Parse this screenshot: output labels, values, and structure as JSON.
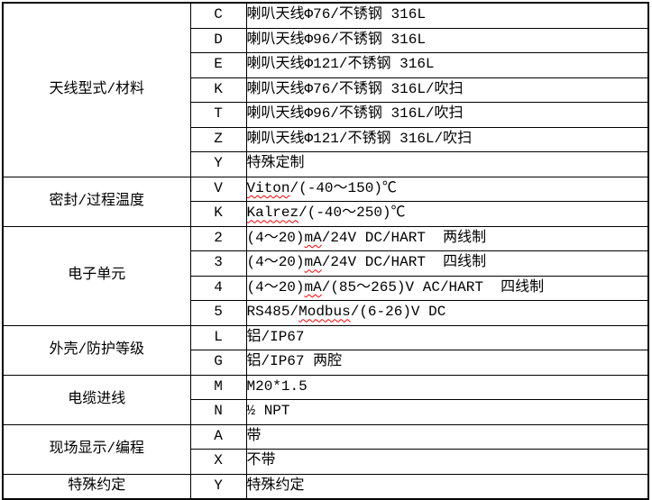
{
  "colors": {
    "background": "#ffffff",
    "text": "#000000",
    "border": "#000000",
    "spellcheck_underline": "#ff0000"
  },
  "spec_table": {
    "sections": [
      {
        "category": "天线型式/材料",
        "rows": [
          {
            "code": "C",
            "desc": "喇叭天线Φ76/不锈钢 316L",
            "misspelled": []
          },
          {
            "code": "D",
            "desc": "喇叭天线Φ96/不锈钢 316L",
            "misspelled": []
          },
          {
            "code": "E",
            "desc": "喇叭天线Φ121/不锈钢 316L",
            "misspelled": []
          },
          {
            "code": "K",
            "desc": "喇叭天线Φ76/不锈钢 316L/吹扫",
            "misspelled": []
          },
          {
            "code": "T",
            "desc": "喇叭天线Φ96/不锈钢 316L/吹扫",
            "misspelled": []
          },
          {
            "code": "Z",
            "desc": "喇叭天线Φ121/不锈钢 316L/吹扫",
            "misspelled": []
          },
          {
            "code": "Y",
            "desc": "特殊定制",
            "misspelled": []
          }
        ]
      },
      {
        "category": "密封/过程温度",
        "rows": [
          {
            "code": "V",
            "desc": "Viton/(-40～150)℃",
            "misspelled": [
              "Viton"
            ]
          },
          {
            "code": "K",
            "desc": "Kalrez/(-40～250)℃",
            "misspelled": [
              "Kalrez"
            ]
          }
        ]
      },
      {
        "category": "电子单元",
        "rows": [
          {
            "code": "2",
            "desc": "(4～20)mA/24V DC/HART  两线制",
            "misspelled": [
              "mA"
            ]
          },
          {
            "code": "3",
            "desc": "(4～20)mA/24V DC/HART  四线制",
            "misspelled": [
              "mA"
            ]
          },
          {
            "code": "4",
            "desc": "(4～20)mA/(85～265)V AC/HART  四线制",
            "misspelled": [
              "mA"
            ]
          },
          {
            "code": "5",
            "desc": "RS485/Modbus/(6-26)V DC",
            "misspelled": [
              "Modbus"
            ]
          }
        ]
      },
      {
        "category": "外壳/防护等级",
        "rows": [
          {
            "code": "L",
            "desc": "铝/IP67",
            "misspelled": []
          },
          {
            "code": "G",
            "desc": "铝/IP67 两腔",
            "misspelled": []
          }
        ]
      },
      {
        "category": "电缆进线",
        "rows": [
          {
            "code": "M",
            "desc": "M20*1.5",
            "misspelled": []
          },
          {
            "code": "N",
            "desc": "½ NPT",
            "misspelled": []
          }
        ]
      },
      {
        "category": "现场显示/编程",
        "rows": [
          {
            "code": "A",
            "desc": "带",
            "misspelled": []
          },
          {
            "code": "X",
            "desc": "不带",
            "misspelled": []
          }
        ]
      },
      {
        "category": "特殊约定",
        "rows": [
          {
            "code": "Y",
            "desc": "特殊约定",
            "misspelled": []
          }
        ]
      }
    ]
  }
}
